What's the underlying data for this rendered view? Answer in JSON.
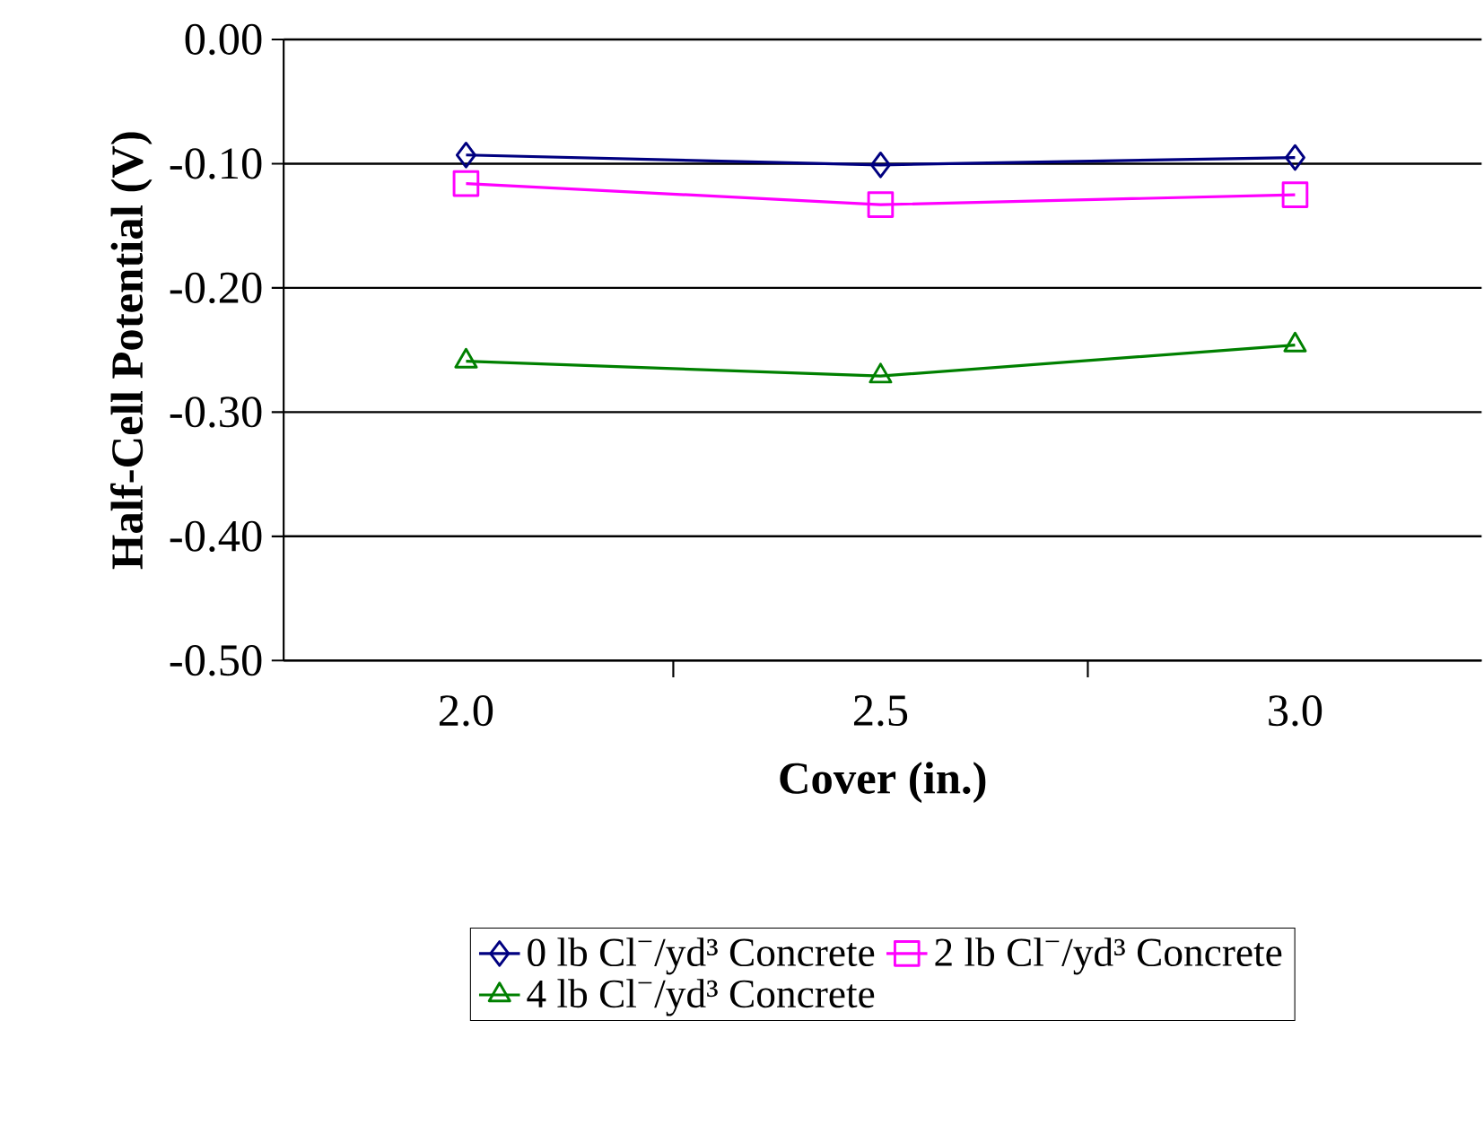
{
  "chart_data": {
    "type": "line",
    "xlabel": "Cover (in.)",
    "ylabel": "Half-Cell Potential (V)",
    "categories": [
      "2.0",
      "2.5",
      "3.0"
    ],
    "series": [
      {
        "name": "0 lb Cl$^{−}$/yd³ Concrete",
        "color": "#000080",
        "marker": "diamond",
        "values": [
          -0.093,
          -0.101,
          -0.095
        ]
      },
      {
        "name": "2 lb Cl$^{−}$/yd³ Concrete",
        "color": "#ff00ff",
        "marker": "square",
        "values": [
          -0.116,
          -0.133,
          -0.125
        ]
      },
      {
        "name": "4 lb Cl$^{−}$/yd³ Concrete",
        "color": "#008000",
        "marker": "triangle",
        "values": [
          -0.259,
          -0.271,
          -0.246
        ]
      }
    ],
    "ylim": [
      -0.5,
      0.0
    ],
    "yticks": [
      {
        "value": -0.5,
        "label": "-0.50"
      },
      {
        "value": -0.4,
        "label": "-0.40"
      },
      {
        "value": -0.3,
        "label": "-0.30"
      },
      {
        "value": -0.2,
        "label": "-0.20"
      },
      {
        "value": -0.1,
        "label": "-0.10"
      },
      {
        "value": 0.0,
        "label": "0.00"
      }
    ],
    "grid": "y",
    "legend": "bottom",
    "line_style": "solid"
  }
}
